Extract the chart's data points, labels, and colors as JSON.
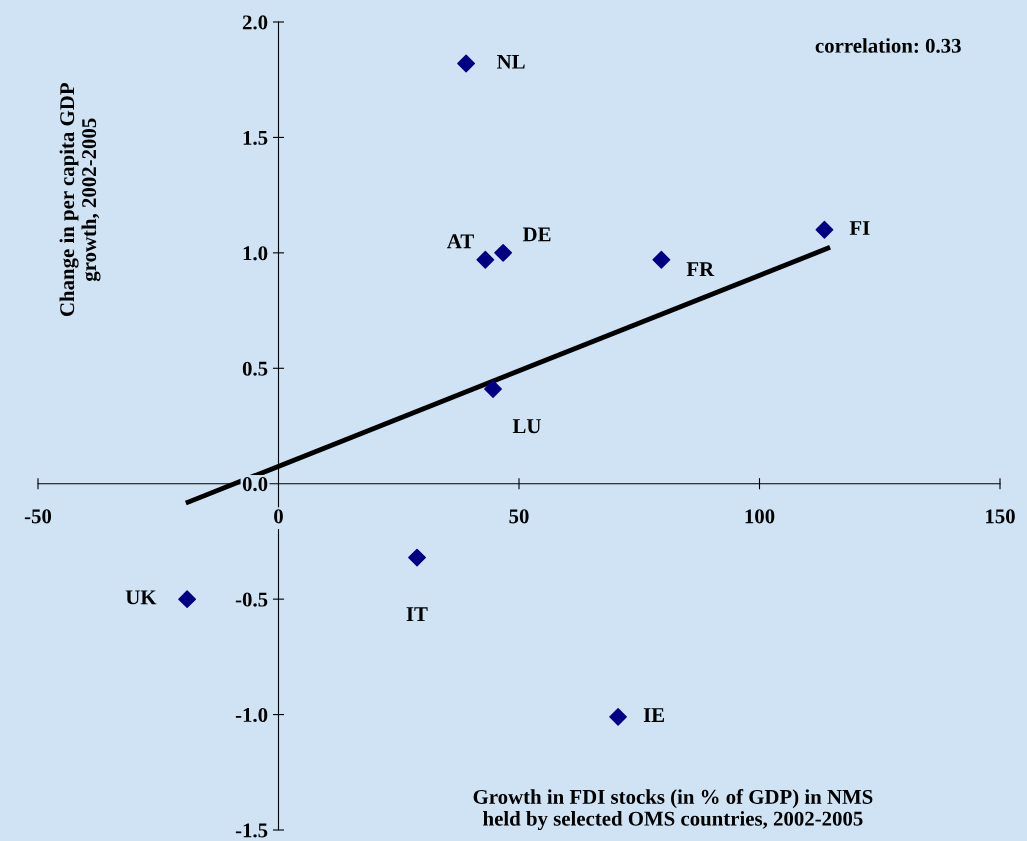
{
  "chart_data": {
    "type": "scatter",
    "xlabel": "Growth in FDI stocks (in % of GDP) in NMS\nheld by selected OMS countries, 2002-2005",
    "ylabel": "Change in per capita GDP\ngrowth, 2002-2005",
    "series": [
      {
        "color": "#000080",
        "marker": "diamond",
        "x": [
          39,
          43,
          46.7,
          79.6,
          113.5,
          44.6,
          28.8,
          -19,
          70.6
        ],
        "values": [
          1.82,
          0.97,
          1.0,
          0.97,
          1.1,
          0.41,
          -0.32,
          -0.5,
          -1.01
        ]
      },
      {
        "type": "line",
        "color": "#000000",
        "marker": "none",
        "x": [
          -18.8,
          114.2
        ],
        "values": [
          -0.08,
          1.02
        ]
      }
    ],
    "annotations": [
      "correlation: 0.33",
      {
        "text": "NL",
        "x": 39,
        "y": 1.82
      },
      {
        "text": "AT",
        "x": 43,
        "y": 0.97
      },
      {
        "text": "DE",
        "x": 46.7,
        "y": 1.0
      },
      {
        "text": "FR",
        "x": 79.6,
        "y": 0.97
      },
      {
        "text": "FI",
        "x": 113.5,
        "y": 1.1
      },
      {
        "text": "LU",
        "x": 44.6,
        "y": 0.41
      },
      {
        "text": "IT",
        "x": 28.8,
        "y": -0.32
      },
      {
        "text": "UK",
        "x": -19,
        "y": -0.5
      },
      {
        "text": "IE",
        "x": 70.6,
        "y": -1.01
      }
    ],
    "xlim": [
      -50,
      150
    ],
    "xticks": [
      -50,
      0,
      50,
      100,
      150
    ],
    "ylim": [
      -1.5,
      2.0
    ],
    "yticks": [
      {
        "value": -1.5,
        "label": "-1.5"
      },
      {
        "value": -1.0,
        "label": "-1.0"
      },
      {
        "value": -0.5,
        "label": "-0.5"
      },
      {
        "value": 0.0,
        "label": "0.0"
      },
      {
        "value": 0.5,
        "label": "0.5"
      },
      {
        "value": 1.0,
        "label": "1.0"
      },
      {
        "value": 1.5,
        "label": "1.5"
      },
      {
        "value": 2.0,
        "label": "2.0"
      }
    ],
    "grid": false,
    "legend": false
  }
}
